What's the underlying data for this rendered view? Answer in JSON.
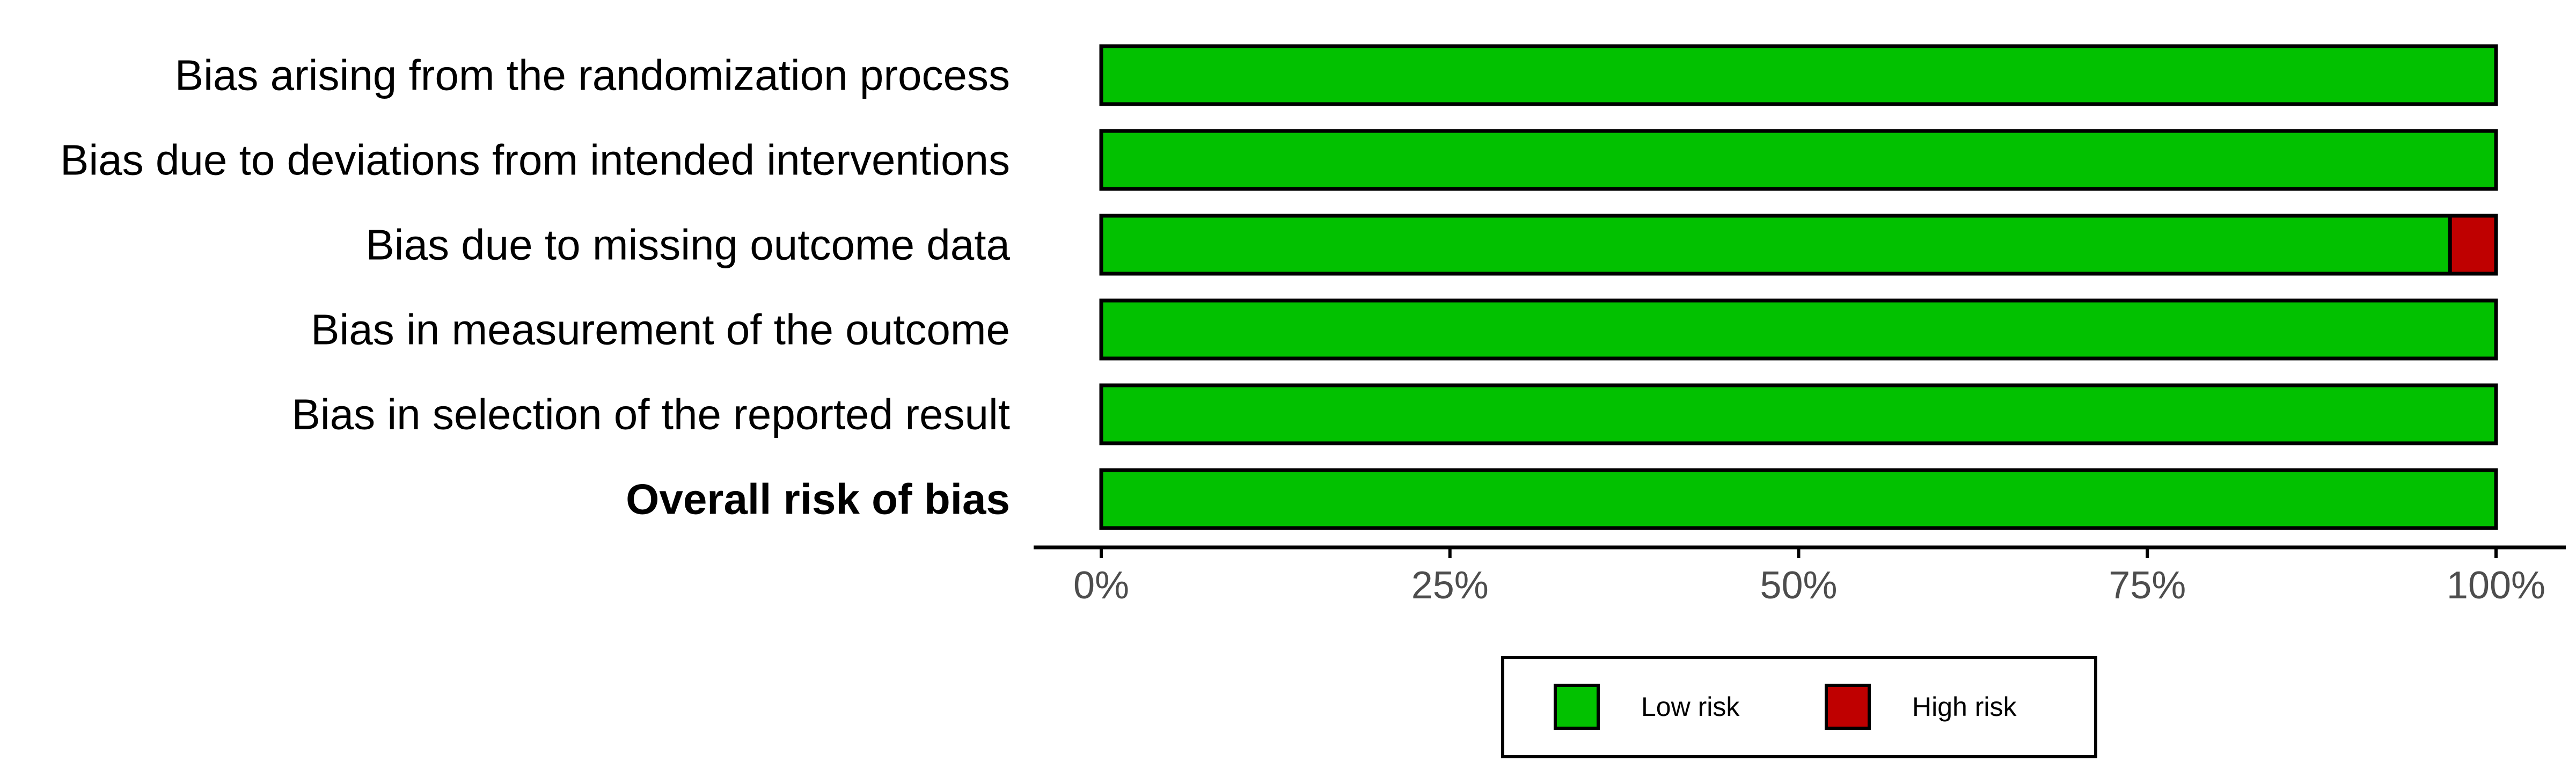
{
  "chart_data": {
    "type": "bar",
    "orientation": "horizontal",
    "stacked": true,
    "categories": [
      "Bias arising from the randomization process",
      "Bias due to deviations from intended interventions",
      "Bias due to missing outcome data",
      "Bias in measurement of the outcome",
      "Bias in selection of the reported result",
      "Overall risk of bias"
    ],
    "category_bold": [
      false,
      false,
      false,
      false,
      false,
      true
    ],
    "series": [
      {
        "name": "Low risk",
        "color": "#02C100",
        "values": [
          100,
          100,
          96.7,
          100,
          100,
          100
        ]
      },
      {
        "name": "High risk",
        "color": "#BF0000",
        "values": [
          0,
          0,
          3.3,
          0,
          0,
          0
        ]
      }
    ],
    "xlim": [
      0,
      100
    ],
    "x_ticks": [
      0,
      25,
      50,
      75,
      100
    ],
    "x_tick_labels": [
      "0%",
      "25%",
      "50%",
      "75%",
      "100%"
    ],
    "title": "",
    "xlabel": "",
    "ylabel": "",
    "grid": false,
    "legend": {
      "position": "bottom",
      "items": [
        "Low risk",
        "High risk"
      ]
    }
  }
}
